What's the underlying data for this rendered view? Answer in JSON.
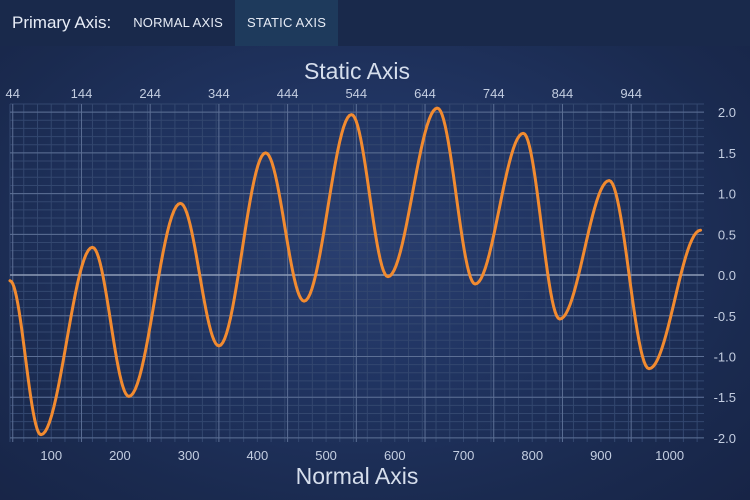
{
  "toolbar": {
    "label": "Primary Axis:",
    "buttons": [
      {
        "label": "NORMAL AXIS",
        "active": false
      },
      {
        "label": "STATIC AXIS",
        "active": true
      }
    ]
  },
  "colors": {
    "line": "#f28b30",
    "gridMajor": "#5c6f95",
    "gridMinor": "#33476f",
    "zeroLine": "#8d9bb6"
  },
  "chart_data": {
    "type": "line",
    "xlabel": "Normal Axis",
    "x2label": "Static Axis",
    "ylabel": "",
    "xlim": [
      40,
      1050
    ],
    "ylim": [
      -2.05,
      2.1
    ],
    "x_ticks": [
      "100",
      "200",
      "300",
      "400",
      "500",
      "600",
      "700",
      "800",
      "900",
      "1000"
    ],
    "x2_ticks": [
      "44",
      "144",
      "244",
      "344",
      "444",
      "544",
      "644",
      "744",
      "844",
      "944"
    ],
    "y_ticks": [
      "2.0",
      "1.5",
      "1.0",
      "0.5",
      "0.0",
      "-0.5",
      "-1.0",
      "-1.5",
      "-2.0"
    ],
    "grid": true,
    "series": [
      {
        "x": [
          40,
          85,
          160,
          213,
          288,
          344,
          412,
          468,
          537,
          590,
          662,
          717,
          787,
          840,
          912,
          970,
          1045
        ],
        "y": [
          -0.07,
          -1.96,
          0.34,
          -1.49,
          0.88,
          -0.87,
          1.5,
          -0.32,
          1.97,
          -0.02,
          2.05,
          -0.11,
          1.74,
          -0.54,
          1.16,
          -1.15,
          0.55
        ]
      }
    ]
  }
}
